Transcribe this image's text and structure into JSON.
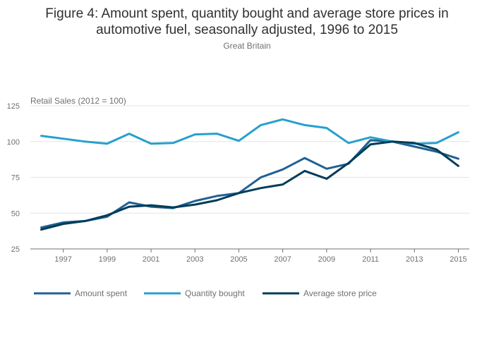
{
  "chart_data": {
    "type": "line",
    "title_line1": "Figure 4: Amount spent, quantity bought and average store prices in",
    "title_line2": "automotive fuel, seasonally adjusted, 1996 to 2015",
    "subtitle": "Great Britain",
    "ylabel": "Retail Sales (2012 = 100)",
    "xlabel": "",
    "xlim": [
      1995.5,
      2015.5
    ],
    "ylim": [
      25,
      125
    ],
    "yticks": [
      25,
      50,
      75,
      100,
      125
    ],
    "xticks": [
      1997,
      1999,
      2001,
      2003,
      2005,
      2007,
      2009,
      2011,
      2013,
      2015
    ],
    "grid": true,
    "legend_position": "bottom",
    "x": [
      1996,
      1997,
      1998,
      1999,
      2000,
      2001,
      2002,
      2003,
      2004,
      2005,
      2006,
      2007,
      2008,
      2009,
      2010,
      2011,
      2012,
      2013,
      2014,
      2015
    ],
    "series": [
      {
        "name": "Amount spent",
        "color": "#206095",
        "values": [
          40,
          43.5,
          44.5,
          47.5,
          57.5,
          54.5,
          53.5,
          58.5,
          62,
          64,
          75,
          80.5,
          88.5,
          81,
          84.5,
          101,
          100,
          96.5,
          93,
          88
        ]
      },
      {
        "name": "Quantity bought",
        "color": "#27a0cc",
        "values": [
          104,
          102,
          100,
          98.5,
          105.5,
          98.5,
          99,
          105,
          105.5,
          100.5,
          111.5,
          115.5,
          111.5,
          109.5,
          99,
          103,
          100,
          98.5,
          99,
          106.5
        ]
      },
      {
        "name": "Average store price",
        "color": "#003c57",
        "values": [
          38.5,
          42.5,
          44.5,
          48.5,
          54.5,
          55.5,
          54,
          56,
          59,
          64,
          67.5,
          70,
          79.5,
          74,
          85,
          98,
          100,
          99,
          94.5,
          83
        ]
      }
    ]
  }
}
